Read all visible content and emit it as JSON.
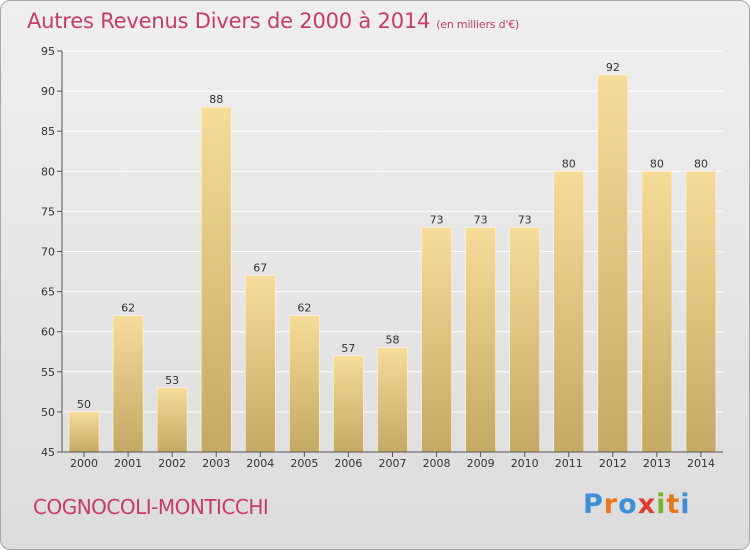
{
  "header": {
    "title": "Autres Revenus Divers de 2000 à 2014",
    "subtitle": "(en milliers d'€)"
  },
  "footer": {
    "commune": "COGNOCOLI-MONTICCHI",
    "brand_letters": [
      "P",
      "r",
      "o",
      "x",
      "i",
      "t",
      "i"
    ],
    "brand_colors": [
      "#3d8fd8",
      "#e87722",
      "#3d8fd8",
      "#e23b2e",
      "#7bb32e",
      "#e87722",
      "#3d8fd8"
    ]
  },
  "colors": {
    "title": "#c83a6a",
    "bar_light": "#f5dc98",
    "bar_dark": "#c4a964",
    "axis": "#555555",
    "grid": "#ffffff"
  },
  "chart_data": {
    "type": "bar",
    "categories": [
      "2000",
      "2001",
      "2002",
      "2003",
      "2004",
      "2005",
      "2006",
      "2007",
      "2008",
      "2009",
      "2010",
      "2011",
      "2012",
      "2013",
      "2014"
    ],
    "values": [
      50,
      62,
      53,
      88,
      67,
      62,
      57,
      58,
      73,
      73,
      73,
      80,
      92,
      80,
      80
    ],
    "data_labels": [
      "50",
      "62",
      "53",
      "88",
      "67",
      "62",
      "57",
      "58",
      "73",
      "73",
      "73",
      "80",
      "92",
      "80",
      "80"
    ],
    "ylim": [
      45,
      95
    ],
    "yticks": [
      "45",
      "50",
      "55",
      "60",
      "65",
      "70",
      "75",
      "80",
      "85",
      "90",
      "95"
    ],
    "grid": true
  }
}
